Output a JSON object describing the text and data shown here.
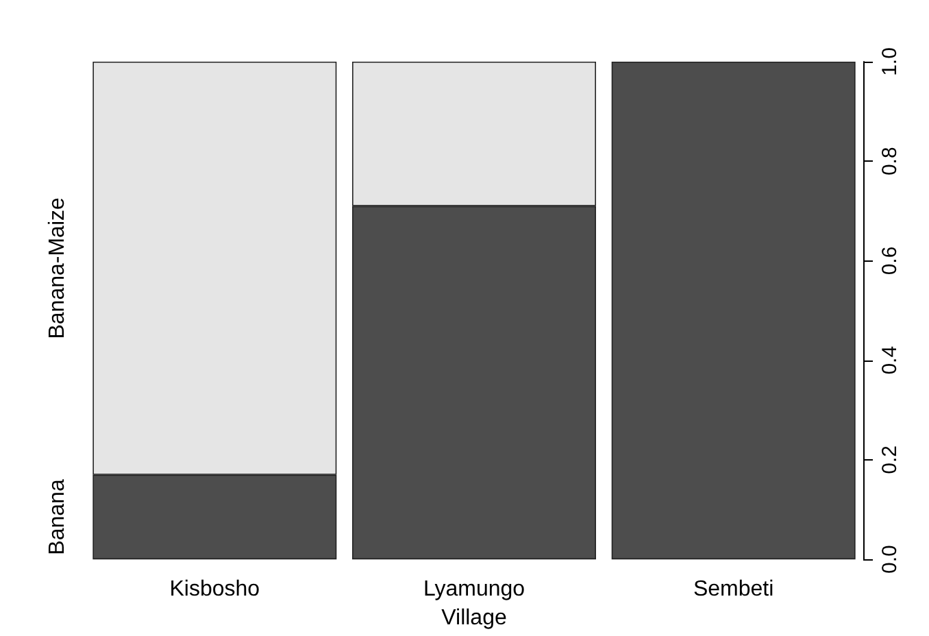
{
  "chart_data": {
    "type": "bar",
    "stacked": true,
    "xlabel": "Village",
    "categories": [
      "Kisbosho",
      "Lyamungo",
      "Sembeti"
    ],
    "series": [
      {
        "name": "Banana",
        "color": "#4d4d4d",
        "values": [
          0.17,
          0.71,
          1.0
        ]
      },
      {
        "name": "Banana-Maize",
        "color": "#e5e5e5",
        "values": [
          0.83,
          0.29,
          0.0
        ]
      }
    ],
    "ylim": [
      0,
      1
    ],
    "yticks": [
      {
        "value": 0,
        "label": "0.0"
      },
      {
        "value": 0.2,
        "label": "0.2"
      },
      {
        "value": 0.4,
        "label": "0.4"
      },
      {
        "value": 0.6,
        "label": "0.6"
      },
      {
        "value": 0.8,
        "label": "0.8"
      },
      {
        "value": 1,
        "label": "1.0"
      }
    ],
    "grid": false,
    "legend": false
  }
}
